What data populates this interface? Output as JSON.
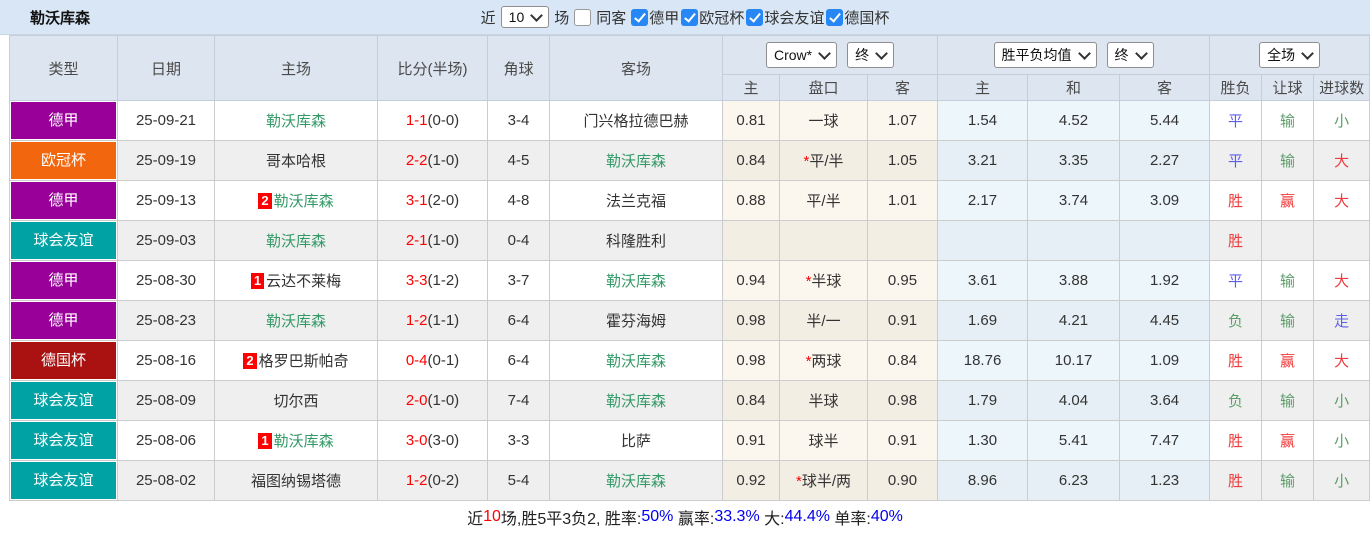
{
  "header": {
    "team_title": "勒沃库森",
    "filter": {
      "near_label": "近",
      "match_count_value": "10",
      "matches_label": "场",
      "same_opponent_label": "同客",
      "same_opponent_checked": false,
      "leagues": [
        {
          "label": "德甲",
          "checked": true
        },
        {
          "label": "欧冠杯",
          "checked": true
        },
        {
          "label": "球会友谊",
          "checked": true
        },
        {
          "label": "德国杯",
          "checked": true
        }
      ]
    }
  },
  "table": {
    "headers": [
      "类型",
      "日期",
      "主场",
      "比分(半场)",
      "角球",
      "客场"
    ],
    "selects": {
      "company": "Crow*",
      "time1": "终",
      "avg_type": "胜平负均值",
      "time2": "终",
      "scope": "全场"
    },
    "subheaders": [
      "主",
      "盘口",
      "客",
      "主",
      "和",
      "客",
      "胜负",
      "让球",
      "进球数"
    ],
    "rows": [
      {
        "type": "德甲",
        "date": "25-09-21",
        "home": "勒沃库森",
        "home_rank": "",
        "home_green": true,
        "score": "1-1",
        "half": "0-0",
        "corner": "3-4",
        "away": "门兴格拉德巴赫",
        "away_rank": "",
        "away_green": false,
        "odds_home": "0.81",
        "handicap": "一球",
        "handicap_star": false,
        "odds_away": "1.07",
        "avg_home": "1.54",
        "avg_draw": "4.52",
        "avg_away": "5.44",
        "result": "平",
        "result_color": "blue",
        "handicap_result": "输",
        "handicap_result_color": "green",
        "goals": "小",
        "goals_color": "green"
      },
      {
        "type": "欧冠杯",
        "date": "25-09-19",
        "home": "哥本哈根",
        "home_rank": "",
        "home_green": false,
        "score": "2-2",
        "half": "1-0",
        "corner": "4-5",
        "away": "勒沃库森",
        "away_rank": "",
        "away_green": true,
        "odds_home": "0.84",
        "handicap": "平/半",
        "handicap_star": true,
        "odds_away": "1.05",
        "avg_home": "3.21",
        "avg_draw": "3.35",
        "avg_away": "2.27",
        "result": "平",
        "result_color": "blue",
        "handicap_result": "输",
        "handicap_result_color": "green",
        "goals": "大",
        "goals_color": "red"
      },
      {
        "type": "德甲",
        "date": "25-09-13",
        "home": "勒沃库森",
        "home_rank": "2",
        "home_green": true,
        "score": "3-1",
        "half": "2-0",
        "corner": "4-8",
        "away": "法兰克福",
        "away_rank": "",
        "away_green": false,
        "odds_home": "0.88",
        "handicap": "平/半",
        "handicap_star": false,
        "odds_away": "1.01",
        "avg_home": "2.17",
        "avg_draw": "3.74",
        "avg_away": "3.09",
        "result": "胜",
        "result_color": "red",
        "handicap_result": "赢",
        "handicap_result_color": "red",
        "goals": "大",
        "goals_color": "red"
      },
      {
        "type": "球会友谊",
        "date": "25-09-03",
        "home": "勒沃库森",
        "home_rank": "",
        "home_green": true,
        "score": "2-1",
        "half": "1-0",
        "corner": "0-4",
        "away": "科隆胜利",
        "away_rank": "",
        "away_green": false,
        "odds_home": "",
        "handicap": "",
        "handicap_star": false,
        "odds_away": "",
        "avg_home": "",
        "avg_draw": "",
        "avg_away": "",
        "result": "胜",
        "result_color": "red",
        "handicap_result": "",
        "handicap_result_color": "red",
        "goals": "",
        "goals_color": "red"
      },
      {
        "type": "德甲",
        "date": "25-08-30",
        "home": "云达不莱梅",
        "home_rank": "1",
        "home_green": false,
        "score": "3-3",
        "half": "1-2",
        "corner": "3-7",
        "away": "勒沃库森",
        "away_rank": "",
        "away_green": true,
        "odds_home": "0.94",
        "handicap": "半球",
        "handicap_star": true,
        "odds_away": "0.95",
        "avg_home": "3.61",
        "avg_draw": "3.88",
        "avg_away": "1.92",
        "result": "平",
        "result_color": "blue",
        "handicap_result": "输",
        "handicap_result_color": "green",
        "goals": "大",
        "goals_color": "red"
      },
      {
        "type": "德甲",
        "date": "25-08-23",
        "home": "勒沃库森",
        "home_rank": "",
        "home_green": true,
        "score": "1-2",
        "half": "1-1",
        "corner": "6-4",
        "away": "霍芬海姆",
        "away_rank": "",
        "away_green": false,
        "odds_home": "0.98",
        "handicap": "半/一",
        "handicap_star": false,
        "odds_away": "0.91",
        "avg_home": "1.69",
        "avg_draw": "4.21",
        "avg_away": "4.45",
        "result": "负",
        "result_color": "green",
        "handicap_result": "输",
        "handicap_result_color": "green",
        "goals": "走",
        "goals_color": "blue"
      },
      {
        "type": "德国杯",
        "date": "25-08-16",
        "home": "格罗巴斯帕奇",
        "home_rank": "2",
        "home_green": false,
        "score": "0-4",
        "half": "0-1",
        "corner": "6-4",
        "away": "勒沃库森",
        "away_rank": "",
        "away_green": true,
        "odds_home": "0.98",
        "handicap": "两球",
        "handicap_star": true,
        "odds_away": "0.84",
        "avg_home": "18.76",
        "avg_draw": "10.17",
        "avg_away": "1.09",
        "result": "胜",
        "result_color": "red",
        "handicap_result": "赢",
        "handicap_result_color": "red",
        "goals": "大",
        "goals_color": "red"
      },
      {
        "type": "球会友谊",
        "date": "25-08-09",
        "home": "切尔西",
        "home_rank": "",
        "home_green": false,
        "score": "2-0",
        "half": "1-0",
        "corner": "7-4",
        "away": "勒沃库森",
        "away_rank": "",
        "away_green": true,
        "odds_home": "0.84",
        "handicap": "半球",
        "handicap_star": false,
        "odds_away": "0.98",
        "avg_home": "1.79",
        "avg_draw": "4.04",
        "avg_away": "3.64",
        "result": "负",
        "result_color": "green",
        "handicap_result": "输",
        "handicap_result_color": "green",
        "goals": "小",
        "goals_color": "green"
      },
      {
        "type": "球会友谊",
        "date": "25-08-06",
        "home": "勒沃库森",
        "home_rank": "1",
        "home_green": true,
        "score": "3-0",
        "half": "3-0",
        "corner": "3-3",
        "away": "比萨",
        "away_rank": "",
        "away_green": false,
        "odds_home": "0.91",
        "handicap": "球半",
        "handicap_star": false,
        "odds_away": "0.91",
        "avg_home": "1.30",
        "avg_draw": "5.41",
        "avg_away": "7.47",
        "result": "胜",
        "result_color": "red",
        "handicap_result": "赢",
        "handicap_result_color": "red",
        "goals": "小",
        "goals_color": "green"
      },
      {
        "type": "球会友谊",
        "date": "25-08-02",
        "home": "福图纳锡塔德",
        "home_rank": "",
        "home_green": false,
        "score": "1-2",
        "half": "0-2",
        "corner": "5-4",
        "away": "勒沃库森",
        "away_rank": "",
        "away_green": true,
        "odds_home": "0.92",
        "handicap": "球半/两",
        "handicap_star": true,
        "odds_away": "0.90",
        "avg_home": "8.96",
        "avg_draw": "6.23",
        "avg_away": "1.23",
        "result": "胜",
        "result_color": "red",
        "handicap_result": "输",
        "handicap_result_color": "green",
        "goals": "小",
        "goals_color": "green"
      }
    ]
  },
  "summary": {
    "segments": [
      {
        "text": "近",
        "color": "black"
      },
      {
        "text": "10",
        "color": "red"
      },
      {
        "text": "场,胜5平3负2, 胜率:",
        "color": "black"
      },
      {
        "text": "50%",
        "color": "link_blue"
      },
      {
        "text": " 赢率:",
        "color": "black"
      },
      {
        "text": "33.3%",
        "color": "link_blue"
      },
      {
        "text": " 大:",
        "color": "black"
      },
      {
        "text": "44.4%",
        "color": "link_blue"
      },
      {
        "text": " 单率:",
        "color": "black"
      },
      {
        "text": "40%",
        "color": "link_blue"
      }
    ]
  },
  "colors": {
    "red": "#ee3b3b",
    "green": "#5b9e68",
    "blue": "#5f5fee",
    "black": "#222222",
    "link_blue": "#0000ee",
    "score_red": "#ff0000",
    "team_green": "#339966",
    "checkbox_blue": "#2787f5"
  },
  "league_colors": {
    "德甲": "#990099",
    "欧冠杯": "#f2660d",
    "球会友谊": "#00a2a4",
    "德国杯": "#aa1111"
  }
}
